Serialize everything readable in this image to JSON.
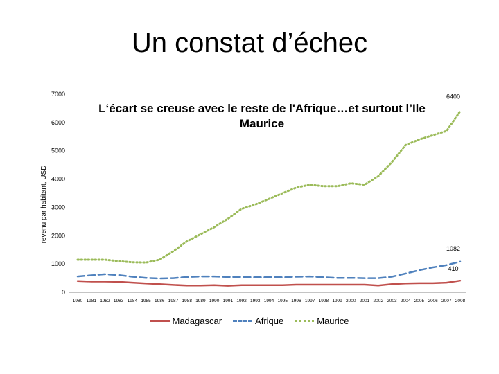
{
  "slide": {
    "title": "Un constat d’échec"
  },
  "chart_data": {
    "type": "line",
    "title": "L‘écart se creuse avec le reste de l'Afrique…et surtout l’Ile Maurice",
    "xlabel": "",
    "ylabel": "revenu par habitant, USD",
    "ylim": [
      0,
      7000
    ],
    "yticks": [
      0,
      1000,
      2000,
      3000,
      4000,
      5000,
      6000,
      7000
    ],
    "x": [
      1980,
      1981,
      1982,
      1983,
      1984,
      1985,
      1986,
      1987,
      1988,
      1989,
      1990,
      1991,
      1992,
      1993,
      1994,
      1995,
      1996,
      1997,
      1998,
      1999,
      2000,
      2001,
      2002,
      2003,
      2004,
      2005,
      2006,
      2007,
      2008
    ],
    "grid": false,
    "legend_position": "bottom",
    "series": [
      {
        "name": "Madagascar",
        "color": "#c0504d",
        "dash": "solid",
        "values": [
          400,
          380,
          380,
          370,
          340,
          310,
          290,
          260,
          240,
          240,
          250,
          230,
          250,
          250,
          250,
          250,
          270,
          270,
          270,
          270,
          270,
          270,
          240,
          290,
          310,
          320,
          320,
          340,
          410
        ]
      },
      {
        "name": "Afrique",
        "color": "#4f81bd",
        "dash": "dashed",
        "values": [
          560,
          600,
          640,
          610,
          550,
          510,
          490,
          500,
          540,
          560,
          560,
          540,
          540,
          530,
          530,
          530,
          550,
          560,
          530,
          510,
          510,
          500,
          500,
          550,
          660,
          780,
          880,
          960,
          1082
        ]
      },
      {
        "name": "Maurice",
        "color": "#9bbb59",
        "dash": "dotted",
        "values": [
          1150,
          1150,
          1150,
          1100,
          1060,
          1050,
          1150,
          1450,
          1800,
          2050,
          2300,
          2600,
          2950,
          3100,
          3300,
          3500,
          3700,
          3800,
          3750,
          3750,
          3850,
          3800,
          4100,
          4600,
          5200,
          5400,
          5550,
          5700,
          6400
        ]
      }
    ],
    "annotations": [
      {
        "text": "6400",
        "series": "Maurice"
      },
      {
        "text": "1082",
        "series": "Afrique"
      },
      {
        "text": "410",
        "series": "Madagascar"
      }
    ]
  }
}
